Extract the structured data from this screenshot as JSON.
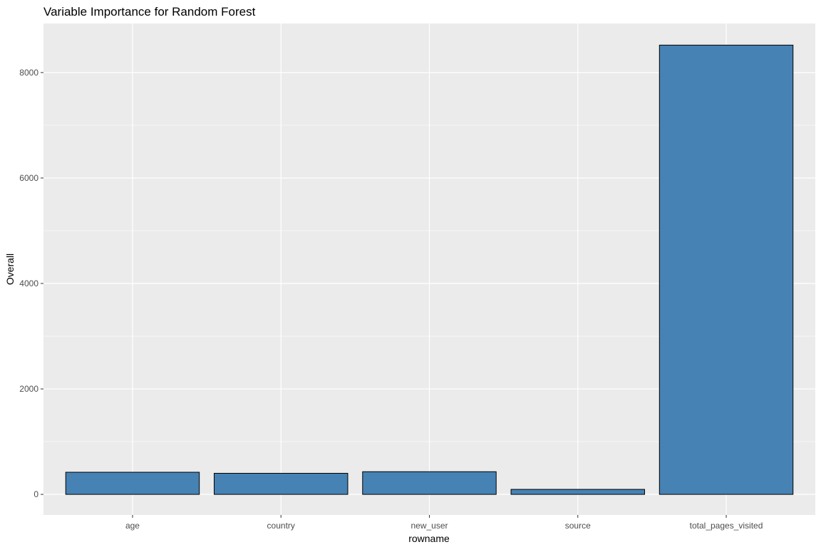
{
  "chart_data": {
    "type": "bar",
    "title": "Variable Importance for Random Forest",
    "xlabel": "rowname",
    "ylabel": "Overall",
    "categories": [
      "age",
      "country",
      "new_user",
      "source",
      "total_pages_visited"
    ],
    "values": [
      420,
      400,
      430,
      95,
      8520
    ],
    "y_ticks": [
      0,
      2000,
      4000,
      6000,
      8000
    ],
    "y_tick_labels": [
      "0",
      "2000",
      "4000",
      "6000",
      "8000"
    ],
    "ylim": [
      -390,
      8930
    ],
    "grid": true,
    "legend": "none",
    "colors": {
      "bar_fill": "#4682b4",
      "bar_stroke": "#000000",
      "panel_bg": "#ebebeb",
      "grid": "#ffffff",
      "tick_text": "#4d4d4d"
    }
  }
}
